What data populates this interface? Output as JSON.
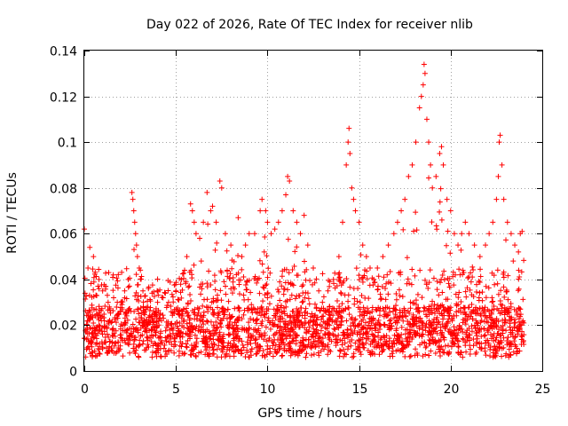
{
  "chart_data": {
    "type": "scatter",
    "title": "Day 022 of 2026, Rate Of TEC Index for receiver nlib",
    "xlabel": "GPS time / hours",
    "ylabel": "ROTI / TECUs",
    "xlim": [
      0,
      25
    ],
    "ylim": [
      0,
      0.14
    ],
    "xticks": [
      0,
      5,
      10,
      15,
      20,
      25
    ],
    "xtick_labels": [
      "0",
      "5",
      "10",
      "15",
      "20",
      "25"
    ],
    "yticks": [
      0,
      0.02,
      0.04,
      0.06,
      0.08,
      0.1,
      0.12,
      0.14
    ],
    "ytick_labels": [
      "0",
      "0.02",
      "0.04",
      "0.06",
      "0.08",
      "0.1",
      "0.12",
      "0.14"
    ],
    "grid": true,
    "marker": "+",
    "color": "#ff0000",
    "x_data_range": [
      0,
      24
    ],
    "series": [
      {
        "name": "ROTI",
        "points": [
          [
            0.0,
            0.062
          ],
          [
            0.2,
            0.045
          ],
          [
            0.3,
            0.054
          ],
          [
            0.5,
            0.05
          ],
          [
            0.8,
            0.04
          ],
          [
            1.0,
            0.035
          ],
          [
            1.3,
            0.03
          ],
          [
            1.6,
            0.032
          ],
          [
            1.8,
            0.03
          ],
          [
            2.0,
            0.03
          ],
          [
            2.2,
            0.035
          ],
          [
            2.4,
            0.04
          ],
          [
            2.6,
            0.078
          ],
          [
            2.65,
            0.075
          ],
          [
            2.7,
            0.07
          ],
          [
            2.75,
            0.065
          ],
          [
            2.8,
            0.06
          ],
          [
            2.85,
            0.055
          ],
          [
            2.9,
            0.05
          ],
          [
            3.0,
            0.045
          ],
          [
            3.2,
            0.035
          ],
          [
            3.5,
            0.036
          ],
          [
            3.7,
            0.034
          ],
          [
            4.0,
            0.03
          ],
          [
            4.3,
            0.032
          ],
          [
            4.6,
            0.03
          ],
          [
            5.0,
            0.035
          ],
          [
            5.3,
            0.04
          ],
          [
            5.6,
            0.05
          ],
          [
            5.8,
            0.073
          ],
          [
            5.9,
            0.07
          ],
          [
            6.0,
            0.065
          ],
          [
            6.1,
            0.06
          ],
          [
            6.3,
            0.058
          ],
          [
            6.5,
            0.065
          ],
          [
            6.7,
            0.078
          ],
          [
            6.9,
            0.07
          ],
          [
            7.0,
            0.072
          ],
          [
            7.2,
            0.065
          ],
          [
            7.4,
            0.083
          ],
          [
            7.5,
            0.08
          ],
          [
            7.7,
            0.06
          ],
          [
            8.0,
            0.055
          ],
          [
            8.4,
            0.067
          ],
          [
            8.6,
            0.05
          ],
          [
            8.8,
            0.055
          ],
          [
            9.0,
            0.06
          ],
          [
            9.3,
            0.06
          ],
          [
            9.6,
            0.07
          ],
          [
            9.7,
            0.075
          ],
          [
            9.9,
            0.07
          ],
          [
            10.0,
            0.065
          ],
          [
            10.2,
            0.06
          ],
          [
            10.4,
            0.062
          ],
          [
            10.6,
            0.065
          ],
          [
            10.8,
            0.07
          ],
          [
            11.0,
            0.077
          ],
          [
            11.1,
            0.085
          ],
          [
            11.2,
            0.083
          ],
          [
            11.4,
            0.07
          ],
          [
            11.6,
            0.065
          ],
          [
            11.8,
            0.06
          ],
          [
            12.0,
            0.068
          ],
          [
            12.2,
            0.055
          ],
          [
            12.5,
            0.045
          ],
          [
            12.8,
            0.035
          ],
          [
            13.0,
            0.03
          ],
          [
            13.3,
            0.035
          ],
          [
            13.6,
            0.04
          ],
          [
            13.9,
            0.05
          ],
          [
            14.1,
            0.065
          ],
          [
            14.3,
            0.09
          ],
          [
            14.4,
            0.1
          ],
          [
            14.45,
            0.106
          ],
          [
            14.5,
            0.095
          ],
          [
            14.6,
            0.08
          ],
          [
            14.7,
            0.075
          ],
          [
            14.8,
            0.07
          ],
          [
            15.0,
            0.065
          ],
          [
            15.2,
            0.055
          ],
          [
            15.4,
            0.05
          ],
          [
            15.6,
            0.045
          ],
          [
            15.8,
            0.04
          ],
          [
            16.0,
            0.045
          ],
          [
            16.3,
            0.05
          ],
          [
            16.6,
            0.055
          ],
          [
            16.9,
            0.06
          ],
          [
            17.1,
            0.065
          ],
          [
            17.3,
            0.07
          ],
          [
            17.5,
            0.075
          ],
          [
            17.7,
            0.085
          ],
          [
            17.9,
            0.09
          ],
          [
            18.1,
            0.1
          ],
          [
            18.3,
            0.115
          ],
          [
            18.4,
            0.12
          ],
          [
            18.5,
            0.125
          ],
          [
            18.55,
            0.134
          ],
          [
            18.6,
            0.13
          ],
          [
            18.7,
            0.11
          ],
          [
            18.8,
            0.1
          ],
          [
            18.9,
            0.09
          ],
          [
            19.0,
            0.08
          ],
          [
            19.2,
            0.085
          ],
          [
            19.4,
            0.095
          ],
          [
            19.5,
            0.098
          ],
          [
            19.6,
            0.09
          ],
          [
            19.8,
            0.075
          ],
          [
            20.0,
            0.07
          ],
          [
            20.2,
            0.06
          ],
          [
            20.4,
            0.055
          ],
          [
            20.6,
            0.06
          ],
          [
            20.8,
            0.065
          ],
          [
            21.0,
            0.06
          ],
          [
            21.3,
            0.055
          ],
          [
            21.6,
            0.05
          ],
          [
            21.9,
            0.055
          ],
          [
            22.1,
            0.06
          ],
          [
            22.3,
            0.065
          ],
          [
            22.5,
            0.075
          ],
          [
            22.6,
            0.085
          ],
          [
            22.65,
            0.1
          ],
          [
            22.7,
            0.103
          ],
          [
            22.8,
            0.09
          ],
          [
            22.9,
            0.075
          ],
          [
            23.1,
            0.065
          ],
          [
            23.3,
            0.06
          ],
          [
            23.5,
            0.055
          ],
          [
            23.7,
            0.052
          ],
          [
            23.8,
            0.06
          ],
          [
            23.9,
            0.061
          ]
        ]
      }
    ]
  }
}
